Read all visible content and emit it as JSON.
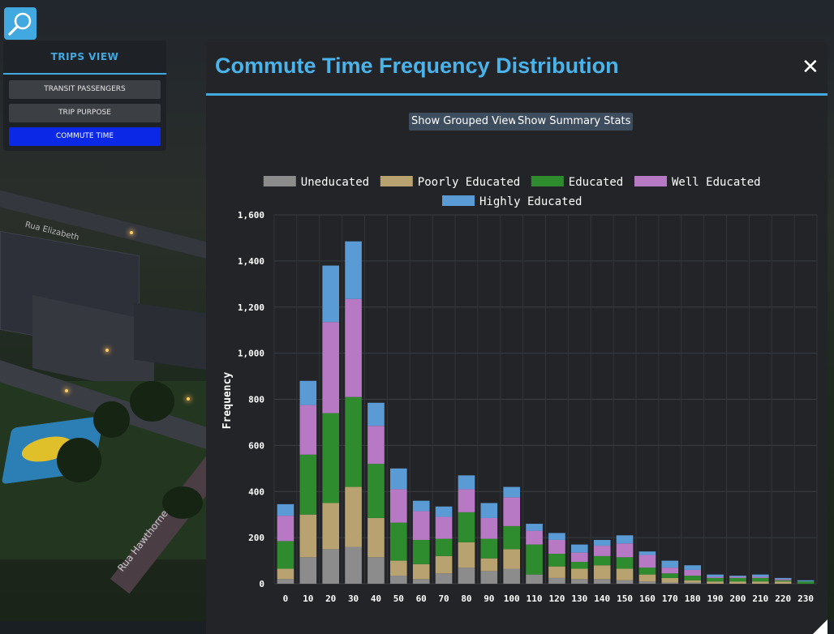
{
  "search_button": {
    "icon": "magnifier-icon"
  },
  "trips_panel": {
    "title": "TRIPS VIEW",
    "items": [
      {
        "label": "TRANSIT PASSENGERS",
        "active": false
      },
      {
        "label": "TRIP PURPOSE",
        "active": false
      },
      {
        "label": "COMMUTE TIME",
        "active": true
      }
    ]
  },
  "background": {
    "street_labels": [
      "Rua Hawthorne",
      "Rua Elizabeth"
    ]
  },
  "modal": {
    "title": "Commute Time Frequency Distribution",
    "close_glyph": "✕",
    "buttons": {
      "grouped": "Show Grouped View",
      "summary": "Show Summary Stats"
    }
  },
  "colors": {
    "accent": "#41a8e0",
    "active_button": "#0a28e6"
  },
  "chart_data": {
    "type": "bar",
    "stacked": true,
    "ylabel": "Frequency",
    "xlabel": "",
    "ylim": [
      0,
      1600
    ],
    "yticks": [
      0,
      200,
      400,
      600,
      800,
      1000,
      1200,
      1400,
      1600
    ],
    "ytick_labels": [
      "0",
      "200",
      "400",
      "600",
      "800",
      "1,000",
      "1,200",
      "1,400",
      "1,600"
    ],
    "grid": true,
    "legend_position": "top",
    "categories": [
      "0",
      "10",
      "20",
      "30",
      "40",
      "50",
      "60",
      "70",
      "80",
      "90",
      "100",
      "110",
      "120",
      "130",
      "140",
      "150",
      "160",
      "170",
      "180",
      "190",
      "200",
      "210",
      "220",
      "230"
    ],
    "series": [
      {
        "name": "Uneducated",
        "color": "#8c8c8c",
        "values": [
          20,
          115,
          150,
          160,
          115,
          35,
          20,
          45,
          70,
          55,
          65,
          40,
          25,
          20,
          20,
          15,
          10,
          5,
          5,
          0,
          0,
          0,
          0,
          0
        ]
      },
      {
        "name": "Poorly Educated",
        "color": "#b8a270",
        "values": [
          45,
          185,
          200,
          260,
          170,
          65,
          65,
          75,
          110,
          55,
          85,
          0,
          50,
          45,
          60,
          50,
          30,
          20,
          10,
          10,
          10,
          10,
          10,
          0
        ]
      },
      {
        "name": "Educated",
        "color": "#2e8b2e",
        "values": [
          120,
          260,
          390,
          390,
          235,
          165,
          105,
          75,
          130,
          85,
          100,
          130,
          55,
          30,
          40,
          50,
          30,
          20,
          20,
          15,
          15,
          15,
          5,
          10
        ]
      },
      {
        "name": "Well Educated",
        "color": "#b779c3",
        "values": [
          110,
          215,
          395,
          425,
          165,
          145,
          125,
          95,
          100,
          90,
          125,
          60,
          60,
          40,
          45,
          60,
          55,
          25,
          25,
          5,
          5,
          5,
          5,
          0
        ]
      },
      {
        "name": "Highly Educated",
        "color": "#5a9bd5",
        "values": [
          50,
          105,
          245,
          250,
          100,
          90,
          45,
          45,
          60,
          65,
          45,
          30,
          30,
          35,
          25,
          35,
          15,
          30,
          20,
          10,
          5,
          10,
          5,
          5
        ]
      }
    ]
  }
}
